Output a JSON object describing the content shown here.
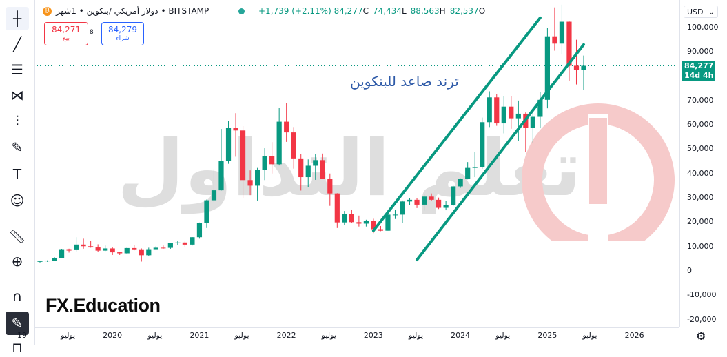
{
  "header": {
    "symbol_text": "دولار أمريكي /بتكوين • 1شهر • BITSTAMP",
    "btc_icon": "bitcoin-icon",
    "change": "+1,739 (+2.11%)",
    "c_value": "84,277",
    "c_label": "C",
    "l_value": "74,434",
    "l_label": "L",
    "h_value": "88,563",
    "h_label": "H",
    "o_value": "82,537",
    "o_label": "O"
  },
  "trade": {
    "sell_price": "84,271",
    "sell_label": "بيع",
    "spread": "8",
    "buy_price": "84,279",
    "buy_label": "شراء"
  },
  "currency": "USD",
  "price_tag": {
    "value": "84,277",
    "countdown": "14d 4h"
  },
  "annotation": "ترند صاعد للبتكوين",
  "branding": {
    "fx_label": "FX.Education",
    "watermark": "تعلم التداول"
  },
  "colors": {
    "up": "#089981",
    "down": "#f23645",
    "trend": "#089981",
    "annotation": "#2e5aa8"
  },
  "tools": [
    "crosshair-icon",
    "trendline-icon",
    "fib-icon",
    "pattern-icon",
    "forecast-icon",
    "brush-icon",
    "text-icon",
    "emoji-icon",
    "ruler-icon",
    "zoom-icon",
    "magnet-icon",
    "lock-drawing-icon",
    "lock-icon"
  ],
  "chart_data": {
    "type": "candlestick",
    "interval": "1M",
    "y_ticks": [
      "100,000",
      "90,000",
      "80,000",
      "70,000",
      "60,000",
      "50,000",
      "40,000",
      "30,000",
      "20,000",
      "10,000",
      "0",
      "-10,000",
      "-20,000"
    ],
    "x_ticks": [
      "19",
      "يوليو",
      "2020",
      "يوليو",
      "2021",
      "يوليو",
      "2022",
      "يوليو",
      "2023",
      "يوليو",
      "2024",
      "يوليو",
      "2025",
      "يوليو",
      "2026"
    ],
    "ylim": [
      -20000,
      100000
    ],
    "current_price": 84277,
    "candles": [
      [
        3800,
        4100,
        3400,
        4000
      ],
      [
        4000,
        4300,
        3700,
        4200
      ],
      [
        4200,
        5600,
        4000,
        5300
      ],
      [
        5300,
        8800,
        5200,
        8600
      ],
      [
        8600,
        9100,
        7500,
        8500
      ],
      [
        8500,
        13800,
        8000,
        10800
      ],
      [
        10800,
        13200,
        9100,
        10100
      ],
      [
        10100,
        12300,
        9500,
        9600
      ],
      [
        9600,
        10900,
        7700,
        8300
      ],
      [
        8300,
        10400,
        8100,
        9200
      ],
      [
        9200,
        9600,
        6500,
        7600
      ],
      [
        7600,
        7900,
        6500,
        7200
      ],
      [
        7200,
        9500,
        6900,
        9350
      ],
      [
        9350,
        10500,
        8400,
        8550
      ],
      [
        8550,
        9200,
        3800,
        6400
      ],
      [
        6400,
        9500,
        6200,
        8600
      ],
      [
        8600,
        10100,
        8600,
        9500
      ],
      [
        9500,
        10400,
        8900,
        9450
      ],
      [
        9450,
        11400,
        9000,
        11350
      ],
      [
        11350,
        12400,
        10600,
        11650
      ],
      [
        11650,
        12050,
        9900,
        10780
      ],
      [
        10780,
        13850,
        10400,
        13800
      ],
      [
        13800,
        19850,
        13200,
        19700
      ],
      [
        19700,
        29300,
        17600,
        29000
      ],
      [
        29000,
        41900,
        28200,
        33100
      ],
      [
        33100,
        58300,
        33000,
        45200
      ],
      [
        45200,
        61700,
        44000,
        58800
      ],
      [
        58800,
        64800,
        46900,
        57700
      ],
      [
        57700,
        59500,
        30000,
        37300
      ],
      [
        37300,
        41300,
        31100,
        35000
      ],
      [
        35000,
        42300,
        28900,
        41500
      ],
      [
        41500,
        50400,
        37300,
        47100
      ],
      [
        47100,
        52900,
        40000,
        43800
      ],
      [
        43800,
        66900,
        43300,
        61300
      ],
      [
        61300,
        69000,
        53000,
        56900
      ],
      [
        56900,
        59100,
        42000,
        46200
      ],
      [
        46200,
        47900,
        33000,
        38500
      ],
      [
        38500,
        45800,
        34300,
        43200
      ],
      [
        43200,
        48100,
        37400,
        45500
      ],
      [
        45500,
        48200,
        37700,
        37700
      ],
      [
        37700,
        40000,
        26700,
        31800
      ],
      [
        31800,
        31900,
        17600,
        19900
      ],
      [
        19900,
        24600,
        18900,
        23300
      ],
      [
        23300,
        25200,
        19600,
        20000
      ],
      [
        20000,
        22700,
        18200,
        19400
      ],
      [
        19400,
        21000,
        18200,
        20500
      ],
      [
        20500,
        21400,
        15500,
        17100
      ],
      [
        17100,
        18400,
        16300,
        16500
      ],
      [
        16500,
        23900,
        16500,
        23100
      ],
      [
        23100,
        25200,
        21300,
        23100
      ],
      [
        23100,
        28900,
        19600,
        28500
      ],
      [
        28500,
        30000,
        26900,
        29200
      ],
      [
        29200,
        29800,
        25800,
        27200
      ],
      [
        27200,
        31400,
        24800,
        30500
      ],
      [
        30500,
        31800,
        28900,
        29200
      ],
      [
        29200,
        30100,
        25400,
        25900
      ],
      [
        25900,
        28600,
        24900,
        27000
      ],
      [
        27000,
        35000,
        26600,
        34700
      ],
      [
        34700,
        38000,
        34100,
        37700
      ],
      [
        37700,
        44700,
        37600,
        42300
      ],
      [
        42300,
        48900,
        38500,
        42600
      ],
      [
        42600,
        63000,
        41900,
        61100
      ],
      [
        61100,
        73800,
        59100,
        71300
      ],
      [
        71300,
        72800,
        59600,
        60600
      ],
      [
        60600,
        71900,
        56500,
        67500
      ],
      [
        67500,
        71900,
        58400,
        62700
      ],
      [
        62700,
        70000,
        53500,
        64600
      ],
      [
        64600,
        65100,
        49000,
        58900
      ],
      [
        58900,
        66500,
        52500,
        63300
      ],
      [
        63300,
        73600,
        58900,
        70300
      ],
      [
        70300,
        99800,
        66800,
        96400
      ],
      [
        96400,
        108300,
        90500,
        93400
      ],
      [
        93400,
        109400,
        89200,
        102400
      ],
      [
        102400,
        102500,
        78200,
        84300
      ],
      [
        84300,
        95000,
        76600,
        82500
      ],
      [
        82500,
        88500,
        74400,
        84277
      ]
    ],
    "trendlines": [
      {
        "label": "upper-channel",
        "from": [
          "2023-01",
          16500
        ],
        "to": [
          "2024-12",
          104000
        ]
      },
      {
        "label": "lower-channel",
        "from": [
          "2023-07",
          4500
        ],
        "to": [
          "2025-06",
          93000
        ]
      }
    ]
  }
}
